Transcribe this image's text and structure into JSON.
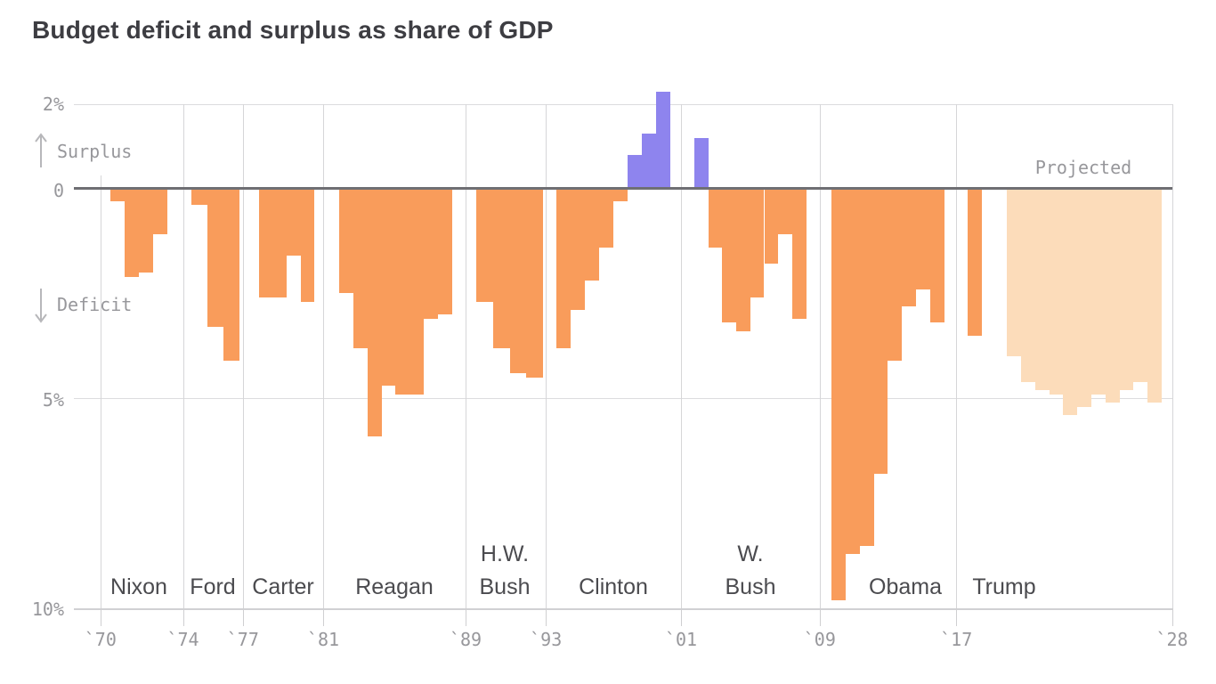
{
  "title": "Budget deficit and surplus as share of GDP",
  "annotations": {
    "surplus_label": "Surplus",
    "deficit_label": "Deficit",
    "projected_label": "Projected"
  },
  "y_axis_ticks": [
    "2%",
    "0",
    "5%",
    "10%"
  ],
  "x_axis_ticks": [
    "`70",
    "`74",
    "`77",
    "`81",
    "`89",
    "`93",
    "`01",
    "`09",
    "`17",
    "`28"
  ],
  "colors": {
    "deficit_bar": "#f99c5b",
    "projected_deficit_bar": "#fcdcba",
    "surplus_bar": "#8e84ee",
    "zero_line": "#6f6f73",
    "gridline": "#dcdcde",
    "label_gray": "#97979b",
    "president_label": "#4b4b4f",
    "title_color": "#3d3d42"
  },
  "chart_data": {
    "type": "bar",
    "title": "Budget deficit and surplus as share of GDP",
    "unit": "percent of GDP",
    "sign_convention": "negative = deficit, positive = surplus",
    "ylim": [
      -10,
      2.5
    ],
    "y_gridlines_pct": [
      2,
      0,
      -5,
      -10
    ],
    "legend_position": "none",
    "grid": "horizontal + presidential-era dividers",
    "eras": [
      {
        "president": "Nixon",
        "label_lines": [
          "Nixon"
        ],
        "segments": [
          {
            "style": "actual",
            "years": [
              1970,
              1971,
              1972,
              1973
            ],
            "values": [
              -0.3,
              -2.1,
              -2.0,
              -1.1
            ]
          }
        ]
      },
      {
        "president": "Ford",
        "label_lines": [
          "Ford"
        ],
        "segments": [
          {
            "style": "actual",
            "years": [
              1974,
              1975,
              1976
            ],
            "values": [
              -0.4,
              -3.3,
              -4.1
            ]
          }
        ]
      },
      {
        "president": "Carter",
        "label_lines": [
          "Carter"
        ],
        "segments": [
          {
            "style": "actual",
            "years": [
              1977,
              1978,
              1979,
              1980
            ],
            "values": [
              -2.6,
              -2.6,
              -1.6,
              -2.7
            ]
          }
        ]
      },
      {
        "president": "Reagan",
        "label_lines": [
          "Reagan"
        ],
        "segments": [
          {
            "style": "actual",
            "years": [
              1981,
              1982,
              1983,
              1984,
              1985,
              1986,
              1987,
              1988
            ],
            "values": [
              -2.5,
              -3.8,
              -5.9,
              -4.7,
              -4.9,
              -4.9,
              -3.1,
              -3.0
            ]
          }
        ]
      },
      {
        "president": "H.W. Bush",
        "label_lines": [
          "H.W.",
          "Bush"
        ],
        "segments": [
          {
            "style": "actual",
            "years": [
              1989,
              1990,
              1991,
              1992
            ],
            "values": [
              -2.7,
              -3.8,
              -4.4,
              -4.5
            ]
          }
        ]
      },
      {
        "president": "Clinton",
        "label_lines": [
          "Clinton"
        ],
        "segments": [
          {
            "style": "actual",
            "years": [
              1993,
              1994,
              1995,
              1996,
              1997,
              1998,
              1999,
              2000
            ],
            "values": [
              -3.8,
              -2.9,
              -2.2,
              -1.4,
              -0.3,
              0.8,
              1.3,
              2.3
            ]
          }
        ]
      },
      {
        "president": "W. Bush",
        "label_lines": [
          "W.",
          "Bush"
        ],
        "segments": [
          {
            "style": "actual",
            "years": [
              2001,
              2002,
              2003,
              2004,
              2005,
              2006,
              2007,
              2008
            ],
            "values": [
              1.2,
              -1.4,
              -3.2,
              -3.4,
              -2.6,
              -1.8,
              -1.1,
              -3.1
            ]
          }
        ]
      },
      {
        "president": "Obama",
        "label_lines": [
          "Obama"
        ],
        "segments": [
          {
            "style": "actual",
            "years": [
              2009,
              2010,
              2011,
              2012,
              2013,
              2014,
              2015,
              2016
            ],
            "values": [
              -9.8,
              -8.7,
              -8.5,
              -6.8,
              -4.1,
              -2.8,
              -2.4,
              -3.2
            ]
          }
        ]
      },
      {
        "president": "Trump",
        "label_lines": [
          "Trump"
        ],
        "segments": [
          {
            "style": "actual",
            "years": [
              2017
            ],
            "values": [
              -3.5
            ]
          },
          {
            "style": "projected",
            "years": [
              2018,
              2019,
              2020,
              2021,
              2022,
              2023,
              2024,
              2025,
              2026,
              2027,
              2028
            ],
            "values": [
              -4.0,
              -4.6,
              -4.8,
              -4.9,
              -5.4,
              -5.2,
              -4.9,
              -5.1,
              -4.8,
              -4.6,
              -5.1
            ]
          }
        ]
      }
    ]
  }
}
